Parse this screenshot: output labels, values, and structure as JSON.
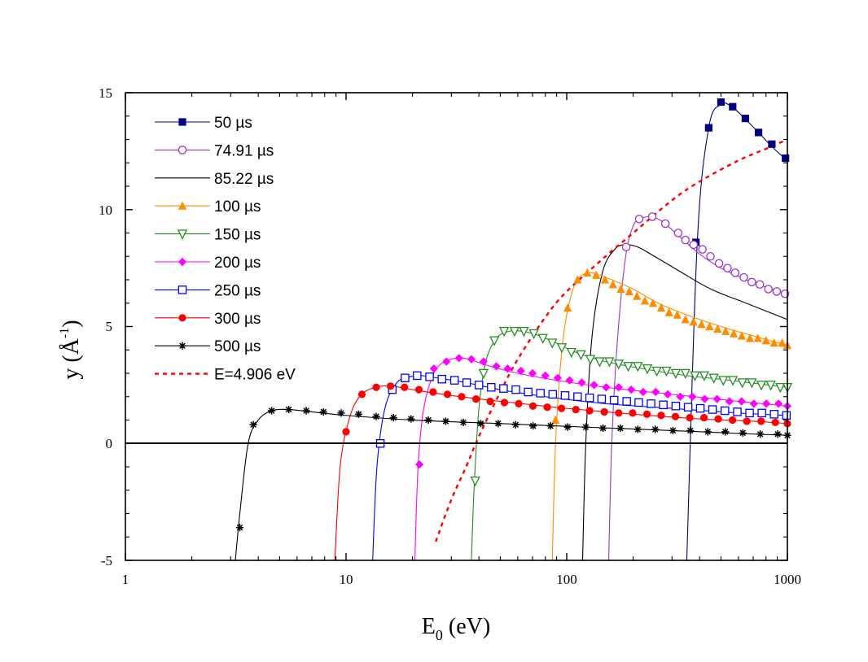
{
  "chart_data": {
    "type": "line",
    "x_scale": "log",
    "xlim": [
      1,
      1000
    ],
    "ylim": [
      -5,
      15
    ],
    "x_ticks": [
      "1",
      "10",
      "100",
      "1000"
    ],
    "y_ticks": [
      "-5",
      "0",
      "5",
      "10",
      "15"
    ],
    "xlabel": "E",
    "xlabel_sub": "0",
    "xlabel_rest": " (eV)",
    "ylabel": "y (Å",
    "ylabel_sup": "-1",
    "ylabel_end": ")",
    "legend_position": "top-left",
    "zero_line": true,
    "series": [
      {
        "name": "50 µs",
        "color": "#000080",
        "marker": "square-filled",
        "x": [
          350,
          390,
          440,
          500,
          560,
          640,
          740,
          850,
          970,
          1000
        ],
        "y": [
          -5,
          8.5,
          13.5,
          14.5,
          14.4,
          13.9,
          13.3,
          12.7,
          12.2,
          12.1
        ],
        "mx": [
          385,
          440,
          500,
          565,
          645,
          740,
          850,
          980
        ],
        "my": [
          8.6,
          13.5,
          14.6,
          14.4,
          13.9,
          13.3,
          12.8,
          12.2
        ]
      },
      {
        "name": "74.91 µs",
        "color": "#9933cc",
        "marker": "circle-open",
        "x": [
          155,
          160,
          170,
          185,
          200,
          215,
          240,
          270,
          320,
          400,
          500,
          650,
          850,
          1000
        ],
        "y": [
          -5,
          0,
          4.5,
          8.0,
          9.3,
          9.6,
          9.7,
          9.5,
          8.9,
          8.1,
          7.5,
          7.0,
          6.6,
          6.4
        ],
        "mx": [
          186,
          213,
          244,
          280,
          320,
          345,
          376,
          412,
          448,
          490,
          535,
          580,
          635,
          690,
          750,
          820,
          895,
          975
        ],
        "my": [
          8.4,
          9.6,
          9.7,
          9.4,
          9.0,
          8.7,
          8.5,
          8.3,
          8.0,
          7.7,
          7.5,
          7.3,
          7.1,
          6.9,
          6.8,
          6.6,
          6.5,
          6.4
        ]
      },
      {
        "name": "85.22 µs",
        "color": "#000000",
        "marker": "none",
        "x": [
          118,
          122,
          130,
          145,
          165,
          185,
          210,
          250,
          320,
          450,
          650,
          1000
        ],
        "y": [
          -5,
          0,
          4.5,
          7.3,
          8.3,
          8.5,
          8.4,
          8.0,
          7.4,
          6.6,
          6.0,
          5.3
        ],
        "mx": [],
        "my": []
      },
      {
        "name": "100 µs",
        "color": "#ff8c00",
        "marker": "triangle-up-filled",
        "x": [
          86,
          89,
          94,
          100,
          110,
          125,
          140,
          160,
          200,
          260,
          350,
          500,
          700,
          1000
        ],
        "y": [
          -5,
          0,
          3.5,
          5.5,
          6.9,
          7.3,
          7.2,
          7.0,
          6.6,
          6.0,
          5.5,
          5.0,
          4.6,
          4.2
        ],
        "mx": [
          89,
          101,
          112,
          124,
          136,
          149,
          162,
          176,
          192,
          208,
          226,
          246,
          268,
          291,
          317,
          345,
          375,
          408,
          444,
          483,
          525,
          571,
          621,
          676,
          735,
          800,
          870,
          946,
          1000
        ],
        "my": [
          1.0,
          5.8,
          7.0,
          7.3,
          7.2,
          7.0,
          6.8,
          6.6,
          6.5,
          6.3,
          6.1,
          6.0,
          5.8,
          5.6,
          5.5,
          5.3,
          5.2,
          5.1,
          5.0,
          4.9,
          4.8,
          4.7,
          4.6,
          4.5,
          4.5,
          4.4,
          4.3,
          4.3,
          4.2
        ]
      },
      {
        "name": "150 µs",
        "color": "#228b22",
        "marker": "triangle-down-open",
        "x": [
          37,
          38,
          40,
          43,
          48,
          55,
          62,
          70,
          85,
          110,
          150,
          220,
          350,
          550,
          1000
        ],
        "y": [
          -5,
          -2,
          1.5,
          3.5,
          4.5,
          4.8,
          4.8,
          4.7,
          4.4,
          3.9,
          3.5,
          3.2,
          2.9,
          2.7,
          2.4
        ],
        "mx": [
          38.5,
          42,
          47,
          52,
          58,
          64,
          71,
          78,
          86,
          95,
          105,
          116,
          128,
          141,
          156,
          172,
          190,
          210,
          232,
          256,
          283,
          312,
          345,
          381,
          420,
          464,
          512,
          566,
          625,
          690,
          762,
          841,
          929,
          1000
        ],
        "my": [
          -1.6,
          3.0,
          4.4,
          4.8,
          4.8,
          4.8,
          4.7,
          4.5,
          4.3,
          4.1,
          3.9,
          3.8,
          3.6,
          3.5,
          3.5,
          3.4,
          3.3,
          3.3,
          3.2,
          3.1,
          3.1,
          3.0,
          3.0,
          2.9,
          2.9,
          2.8,
          2.7,
          2.7,
          2.6,
          2.6,
          2.5,
          2.5,
          2.4,
          2.4
        ]
      },
      {
        "name": "200 µs",
        "color": "#ff00ff",
        "marker": "diamond-filled",
        "x": [
          20.5,
          21.2,
          22.5,
          25,
          28,
          32,
          36,
          45,
          60,
          90,
          150,
          300,
          600,
          1000
        ],
        "y": [
          -5,
          -1,
          1.5,
          3.0,
          3.5,
          3.65,
          3.6,
          3.3,
          3.0,
          2.7,
          2.4,
          2.1,
          1.8,
          1.6
        ],
        "mx": [
          21.5,
          25,
          28.5,
          32.5,
          37,
          42,
          48,
          54,
          62,
          70,
          80,
          91,
          103,
          117,
          133,
          151,
          172,
          196,
          222,
          253,
          287,
          327,
          371,
          422,
          480,
          546,
          620,
          705,
          802,
          912,
          1000
        ],
        "my": [
          -0.9,
          3.2,
          3.5,
          3.65,
          3.6,
          3.5,
          3.3,
          3.2,
          3.1,
          3.0,
          2.9,
          2.8,
          2.7,
          2.6,
          2.5,
          2.4,
          2.4,
          2.3,
          2.2,
          2.2,
          2.1,
          2.0,
          2.0,
          1.9,
          1.9,
          1.8,
          1.8,
          1.7,
          1.7,
          1.7,
          1.6
        ]
      },
      {
        "name": "250 µs",
        "color": "#0000ff",
        "marker": "square-open",
        "x": [
          13.2,
          13.8,
          15,
          17,
          19.5,
          22,
          26,
          35,
          50,
          80,
          150,
          300,
          600,
          1000
        ],
        "y": [
          -5,
          -1,
          1.5,
          2.6,
          2.85,
          2.9,
          2.8,
          2.6,
          2.3,
          2.0,
          1.7,
          1.5,
          1.3,
          1.2
        ],
        "mx": [
          14.3,
          16.2,
          18.5,
          21,
          23.9,
          27.2,
          31,
          35.2,
          40,
          45.5,
          51.7,
          58.8,
          66.9,
          76,
          86.4,
          98.3,
          112,
          127,
          144,
          164,
          187,
          212,
          241,
          274,
          312,
          355,
          403,
          458,
          521,
          593,
          674,
          766,
          871,
          990
        ],
        "my": [
          0.0,
          2.3,
          2.8,
          2.9,
          2.85,
          2.75,
          2.7,
          2.6,
          2.5,
          2.4,
          2.35,
          2.3,
          2.2,
          2.15,
          2.1,
          2.05,
          2.0,
          1.95,
          1.9,
          1.85,
          1.8,
          1.75,
          1.7,
          1.65,
          1.6,
          1.55,
          1.5,
          1.45,
          1.4,
          1.35,
          1.3,
          1.3,
          1.25,
          1.2
        ]
      },
      {
        "name": "300 µs",
        "color": "#ff0000",
        "marker": "circle-filled",
        "x": [
          8.9,
          9.4,
          10.3,
          11.5,
          13.5,
          16,
          20,
          30,
          50,
          100,
          200,
          400,
          700,
          1000
        ],
        "y": [
          -5,
          -1,
          1.0,
          2.0,
          2.4,
          2.45,
          2.3,
          2.05,
          1.8,
          1.5,
          1.25,
          1.05,
          0.95,
          0.85
        ],
        "mx": [
          10,
          11.8,
          13.7,
          15.9,
          18.4,
          21.4,
          24.8,
          28.8,
          33.4,
          38.8,
          45,
          52.2,
          60.6,
          70.3,
          81.6,
          94.7,
          110,
          127,
          148,
          172,
          199,
          231,
          268,
          311,
          361,
          419,
          486,
          564,
          655,
          760,
          882,
          1000
        ],
        "my": [
          0.5,
          2.1,
          2.4,
          2.45,
          2.4,
          2.3,
          2.2,
          2.1,
          2.0,
          1.9,
          1.8,
          1.75,
          1.7,
          1.6,
          1.55,
          1.5,
          1.45,
          1.4,
          1.35,
          1.3,
          1.3,
          1.25,
          1.2,
          1.15,
          1.1,
          1.1,
          1.05,
          1.0,
          0.95,
          0.95,
          0.9,
          0.85
        ]
      },
      {
        "name": "500 µs",
        "color": "#000000",
        "marker": "asterisk",
        "x": [
          3.15,
          3.3,
          3.6,
          4.0,
          4.6,
          5.5,
          7,
          10,
          20,
          50,
          120,
          300,
          700,
          1000
        ],
        "y": [
          -5,
          -3,
          0,
          1.0,
          1.4,
          1.45,
          1.35,
          1.2,
          1.0,
          0.85,
          0.7,
          0.55,
          0.4,
          0.35
        ],
        "mx": [
          3.3,
          3.8,
          4.6,
          5.5,
          6.6,
          7.9,
          9.5,
          11.4,
          13.7,
          16.4,
          19.7,
          23.6,
          28.3,
          34,
          40.8,
          48.9,
          58.7,
          70.4,
          84.5,
          101,
          122,
          146,
          175,
          210,
          252,
          303,
          363,
          436,
          523,
          628,
          753,
          904,
          1000
        ],
        "my": [
          -3.6,
          0.8,
          1.4,
          1.45,
          1.4,
          1.35,
          1.3,
          1.25,
          1.15,
          1.1,
          1.05,
          1.0,
          0.95,
          0.9,
          0.85,
          0.85,
          0.8,
          0.75,
          0.75,
          0.7,
          0.7,
          0.65,
          0.65,
          0.6,
          0.6,
          0.55,
          0.55,
          0.5,
          0.5,
          0.45,
          0.4,
          0.4,
          0.35
        ]
      },
      {
        "name": "E=4.906 eV",
        "color": "#ff0000",
        "marker": "none",
        "dashed": true,
        "x": [
          25.5,
          30,
          35,
          40,
          50,
          60,
          80,
          100,
          150,
          200,
          300,
          400,
          600,
          800,
          1000
        ],
        "y": [
          -4.2,
          -2.4,
          -1.0,
          0.3,
          2.2,
          3.6,
          5.4,
          6.5,
          8.0,
          9.0,
          10.4,
          11.2,
          12.1,
          12.6,
          13.0
        ],
        "mx": [],
        "my": []
      }
    ]
  }
}
